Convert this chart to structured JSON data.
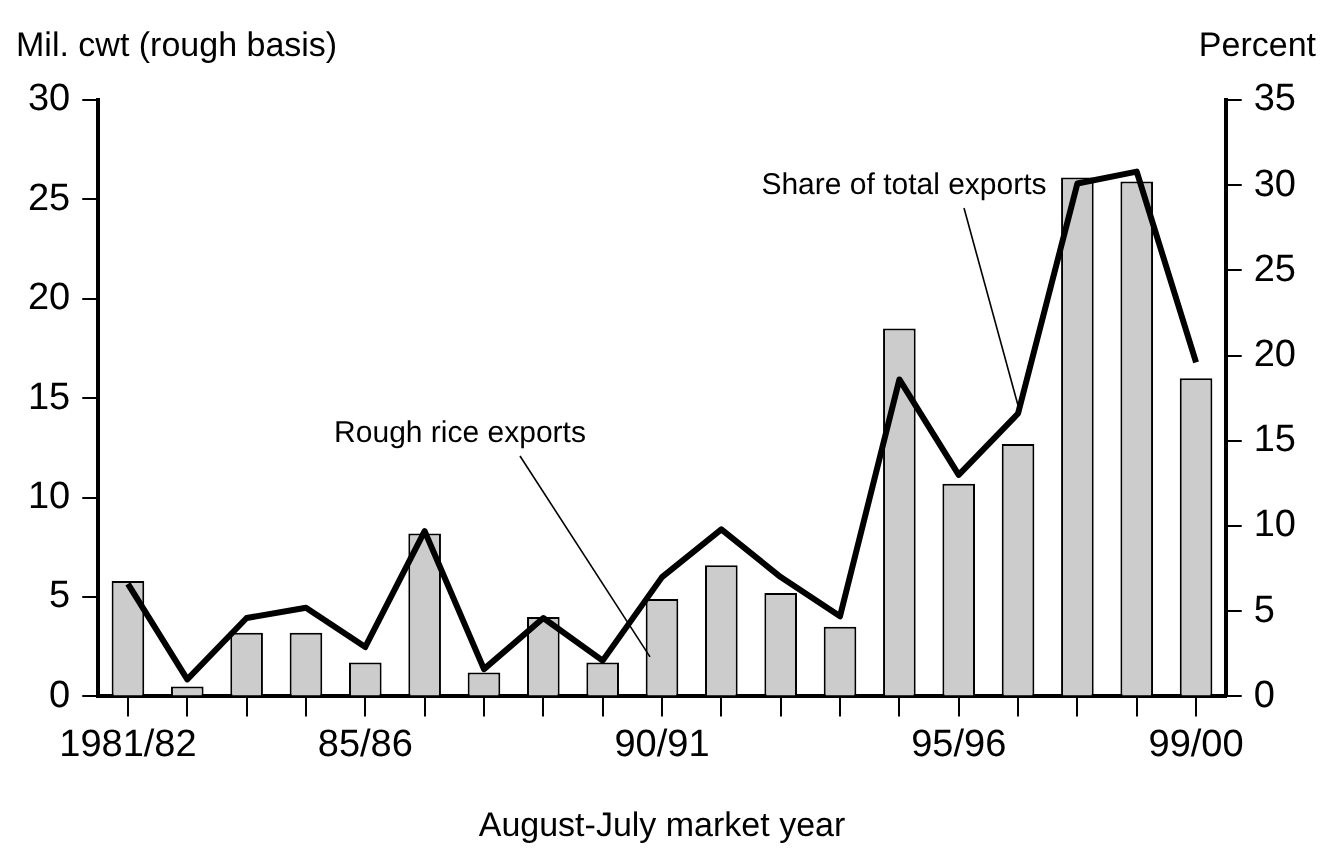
{
  "chart_data": {
    "type": "bar",
    "xlabel": "August-July market year",
    "ylabel": "Mil. cwt (rough basis)",
    "y2label": "Percent",
    "categories": [
      "1981/82",
      null,
      null,
      null,
      "85/86",
      null,
      null,
      null,
      null,
      "90/91",
      null,
      null,
      null,
      null,
      "95/96",
      null,
      null,
      null,
      "99/00"
    ],
    "series": [
      {
        "name": "Rough rice exports",
        "color": "#cccccc",
        "values": [
          5.8,
          0.5,
          3.2,
          3.2,
          1.7,
          8.2,
          1.2,
          4.0,
          1.7,
          4.9,
          6.6,
          5.2,
          3.5,
          18.5,
          10.7,
          12.7,
          26.1,
          25.9,
          16.0
        ]
      },
      {
        "name": "Share of total exports",
        "type": "line",
        "axis": "y2",
        "color": "#000000",
        "values": [
          6.6,
          1.0,
          4.6,
          5.2,
          2.9,
          9.7,
          1.6,
          4.6,
          2.1,
          7.0,
          9.8,
          7.0,
          4.7,
          18.6,
          13.0,
          16.6,
          30.1,
          30.8,
          19.6
        ]
      }
    ],
    "ylim": [
      0,
      30
    ],
    "yticks": [
      0,
      5,
      10,
      15,
      20,
      25,
      30
    ],
    "y2lim": [
      0,
      35
    ],
    "y2ticks": [
      0,
      5,
      10,
      15,
      20,
      25,
      30,
      35
    ],
    "grid": false,
    "legend": false,
    "marker": "none",
    "line_style": "solid"
  }
}
